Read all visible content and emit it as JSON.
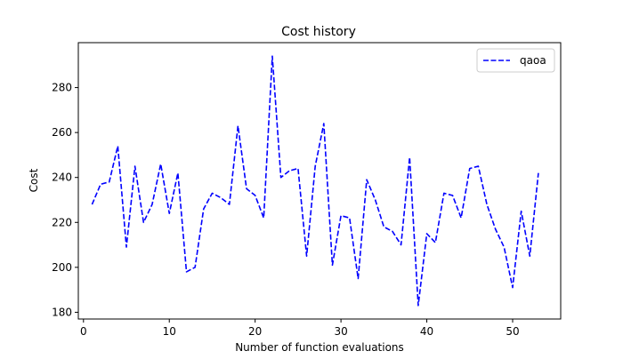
{
  "chart_data": {
    "type": "line",
    "title": "Cost history",
    "xlabel": "Number of function evaluations",
    "ylabel": "Cost",
    "xlim": [
      -0.6,
      55.6
    ],
    "ylim": [
      177,
      300
    ],
    "xticks": [
      0,
      10,
      20,
      30,
      40,
      50
    ],
    "yticks": [
      180,
      200,
      220,
      240,
      260,
      280
    ],
    "grid": false,
    "legend_position": "top-right",
    "series": [
      {
        "name": "qaoa",
        "color": "#0000ff",
        "line_style": "dashed",
        "x": [
          1,
          2,
          3,
          4,
          5,
          6,
          7,
          8,
          9,
          10,
          11,
          12,
          13,
          14,
          15,
          16,
          17,
          18,
          19,
          20,
          21,
          22,
          23,
          24,
          25,
          26,
          27,
          28,
          29,
          30,
          31,
          32,
          33,
          34,
          35,
          36,
          37,
          38,
          39,
          40,
          41,
          42,
          43,
          44,
          45,
          46,
          47,
          48,
          49,
          50,
          51,
          52,
          53
        ],
        "values": [
          228,
          237,
          238,
          254,
          209,
          245,
          220,
          228,
          246,
          224,
          242,
          198,
          200,
          226,
          233,
          231,
          228,
          263,
          235,
          232,
          222,
          294,
          240,
          243,
          244,
          205,
          245,
          264,
          201,
          223,
          222,
          195,
          239,
          230,
          218,
          216,
          210,
          249,
          183,
          215,
          211,
          233,
          232,
          222,
          244,
          245,
          228,
          217,
          209,
          191,
          225,
          205,
          242
        ]
      }
    ]
  }
}
